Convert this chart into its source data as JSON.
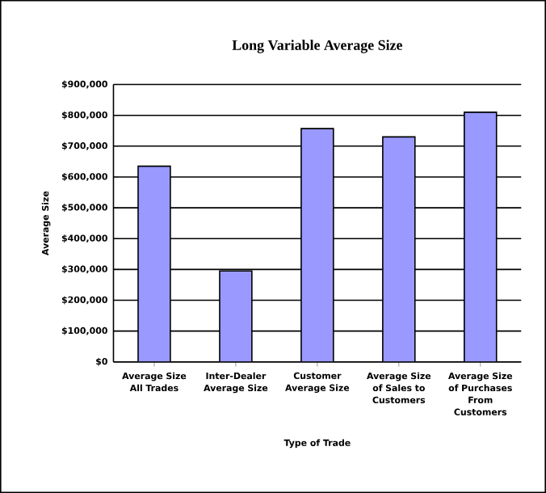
{
  "chart_data": {
    "type": "bar",
    "title": "Long Variable Average Size",
    "xlabel": "Type of Trade",
    "ylabel": "Average Size",
    "categories": [
      "Average Size All Trades",
      "Inter-Dealer Average Size",
      "Customer Average Size",
      "Average Size of Sales to Customers",
      "Average Size of Purchases From Customers"
    ],
    "values": [
      635000,
      295000,
      757000,
      730000,
      810000
    ],
    "color": "#9999ff",
    "ylim": [
      0,
      900000
    ],
    "yticks": [
      {
        "value": 0,
        "label": "$0"
      },
      {
        "value": 100000,
        "label": "$100,000"
      },
      {
        "value": 200000,
        "label": "$200,000"
      },
      {
        "value": 300000,
        "label": "$300,000"
      },
      {
        "value": 400000,
        "label": "$400,000"
      },
      {
        "value": 500000,
        "label": "$500,000"
      },
      {
        "value": 600000,
        "label": "$600,000"
      },
      {
        "value": 700000,
        "label": "$700,000"
      },
      {
        "value": 800000,
        "label": "$800,000"
      },
      {
        "value": 900000,
        "label": "$900,000"
      }
    ],
    "grid": "y"
  }
}
